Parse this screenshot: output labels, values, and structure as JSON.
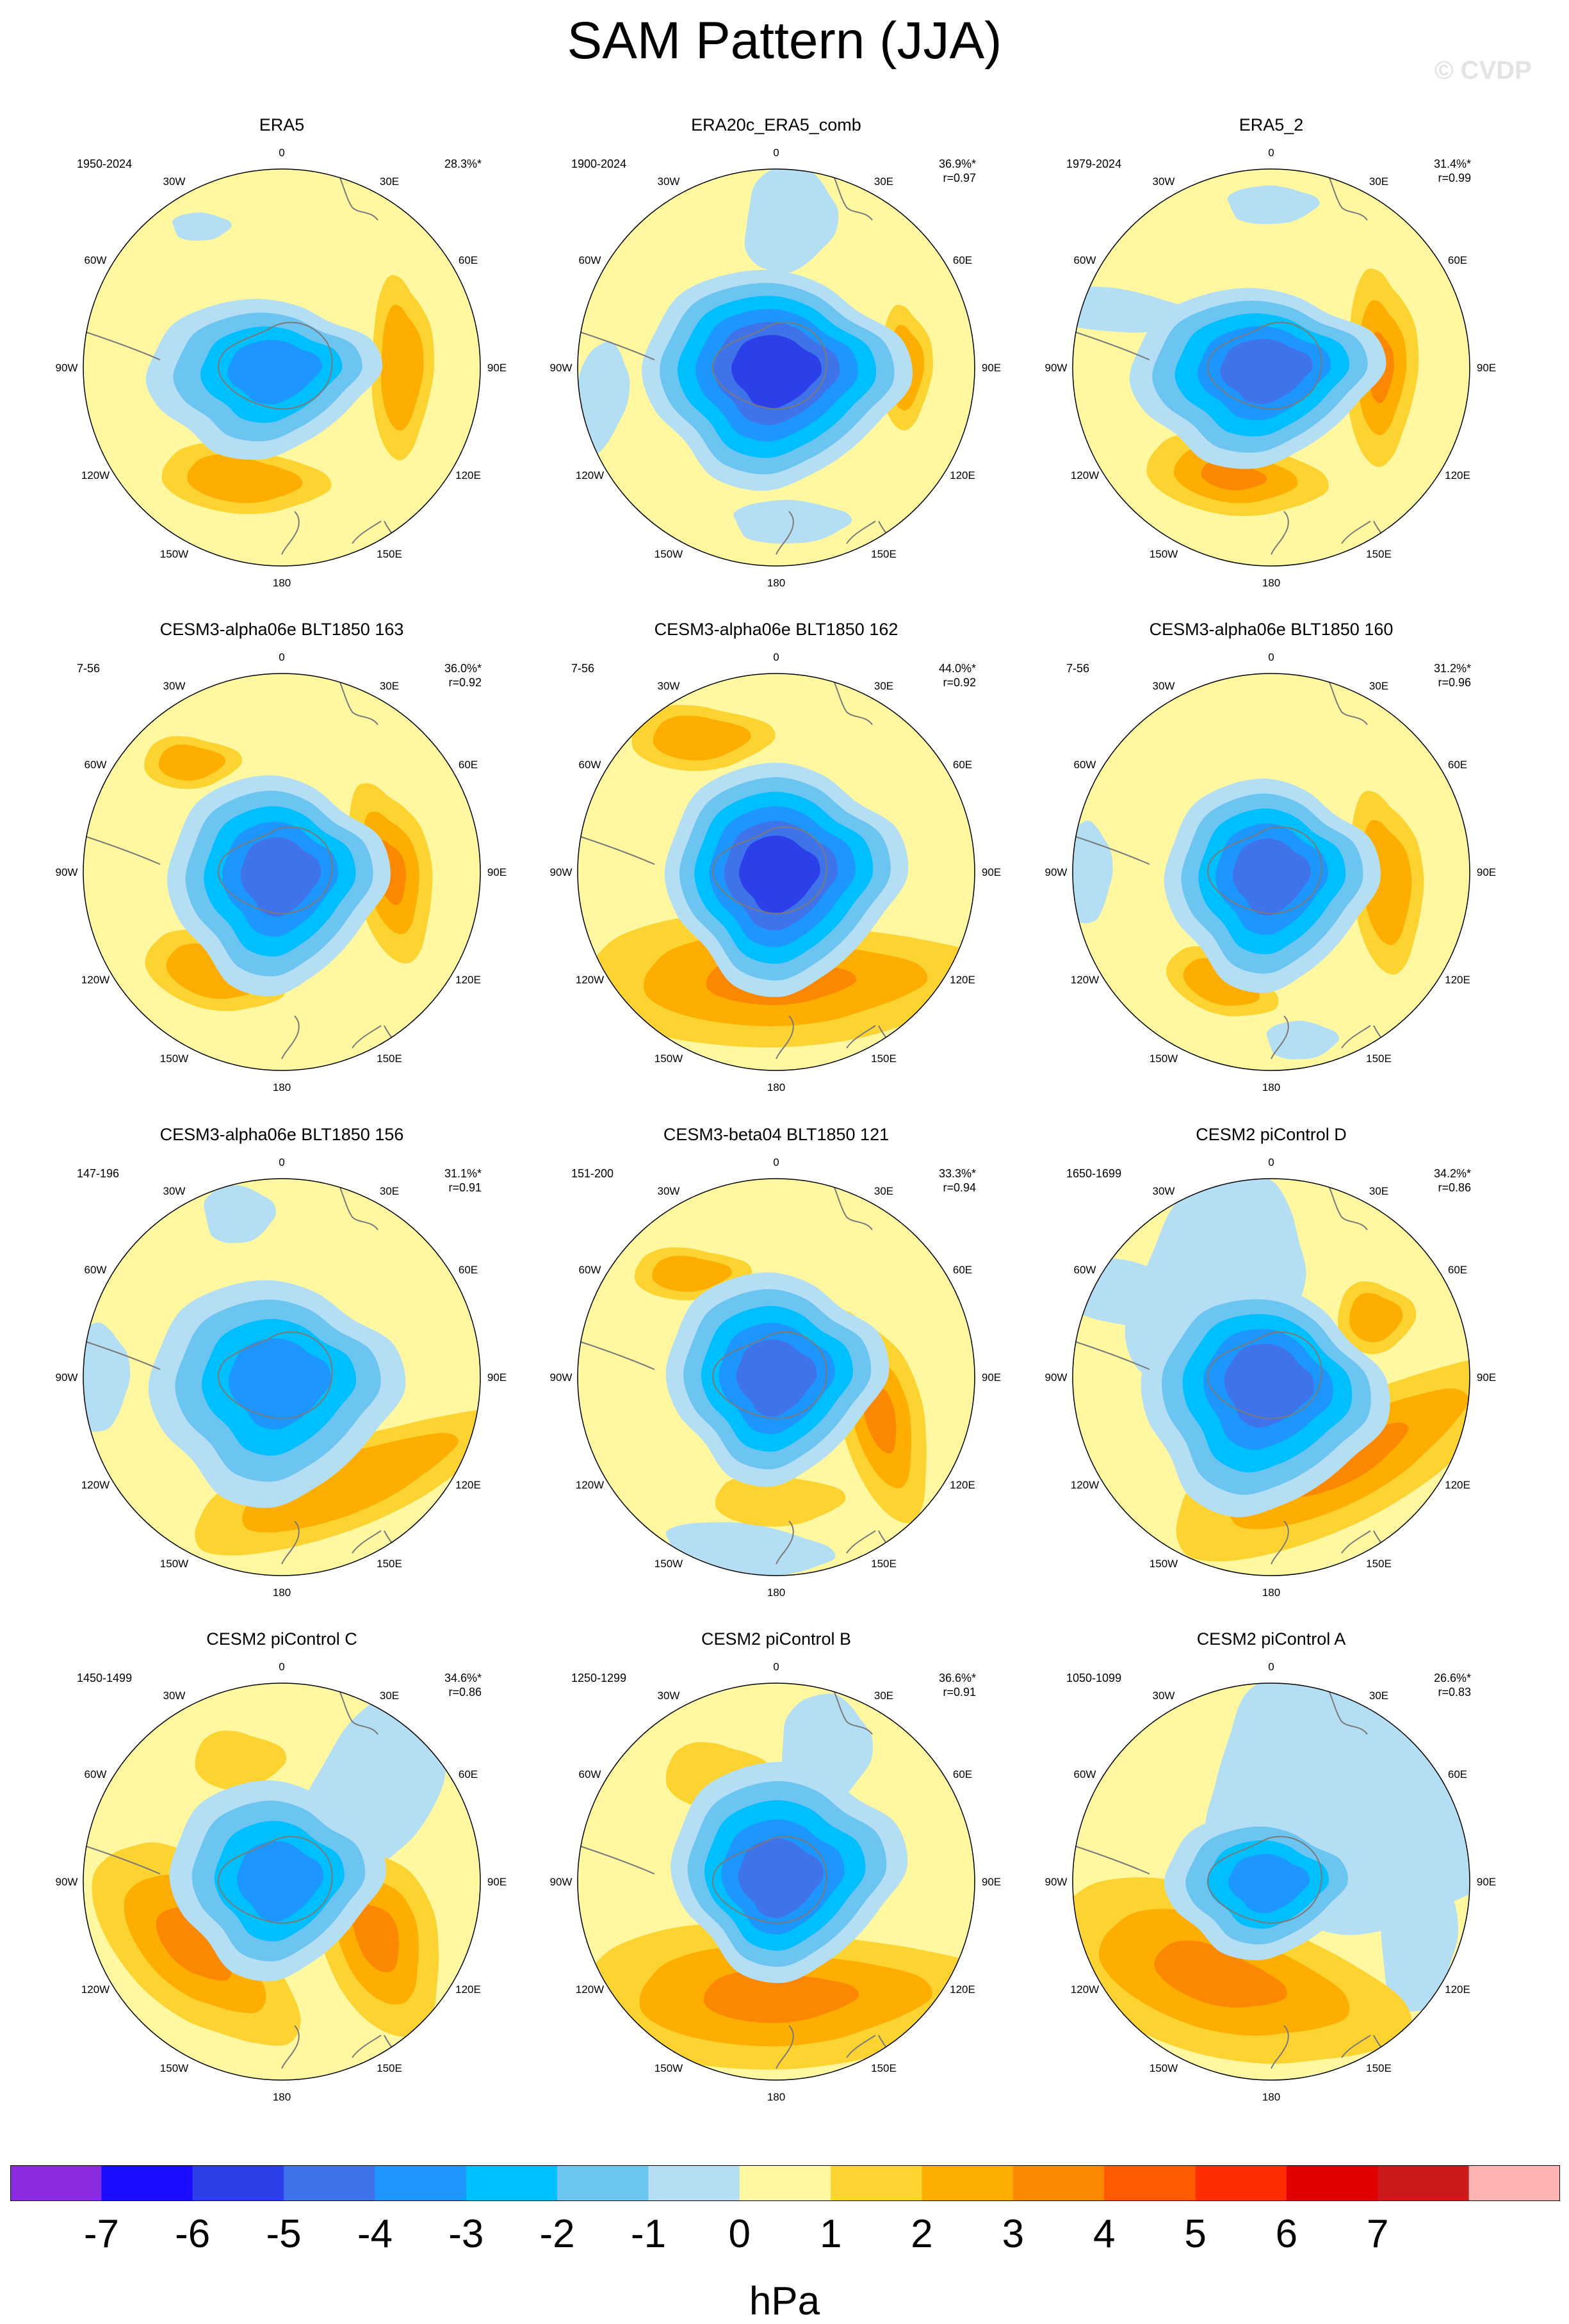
{
  "figure": {
    "title": "SAM Pattern (JJA)",
    "watermark": "© CVDP",
    "colors": {
      "land_outline": "#7a7a7a",
      "frame": "#000000",
      "background": "#ffffff"
    }
  },
  "colorbar": {
    "unit": "hPa",
    "tick_labels": [
      "-7",
      "-6",
      "-5",
      "-4",
      "-3",
      "-2",
      "-1",
      "0",
      "1",
      "2",
      "3",
      "4",
      "5",
      "6",
      "7"
    ],
    "colors": [
      "#8a2be2",
      "#1a0dff",
      "#2b40e8",
      "#3f73ea",
      "#1e96ff",
      "#00bfff",
      "#6cc4f0",
      "#b4def3",
      "#fff8a0",
      "#fdd332",
      "#fdae00",
      "#fc8700",
      "#ff5a00",
      "#ff2d00",
      "#e00000",
      "#cc1a1a",
      "#ffb3b3"
    ]
  },
  "chart_data": [
    {
      "type": "heatmap",
      "title": "ERA5",
      "years": "1950-2024",
      "percent": "28.3%*",
      "corr": "",
      "pattern": "era5",
      "projection": "south polar stereographic",
      "units": "hPa",
      "lon_labels": [
        "0",
        "30E",
        "60E",
        "90E",
        "120E",
        "150E",
        "180",
        "150W",
        "120W",
        "90W",
        "60W",
        "30W"
      ]
    },
    {
      "type": "heatmap",
      "title": "ERA20c_ERA5_comb",
      "years": "1900-2024",
      "percent": "36.9%*",
      "corr": "r=0.97",
      "pattern": "era20c",
      "projection": "south polar stereographic",
      "units": "hPa",
      "lon_labels": [
        "0",
        "30E",
        "60E",
        "90E",
        "120E",
        "150E",
        "180",
        "150W",
        "120W",
        "90W",
        "60W",
        "30W"
      ]
    },
    {
      "type": "heatmap",
      "title": "ERA5_2",
      "years": "1979-2024",
      "percent": "31.4%*",
      "corr": "r=0.99",
      "pattern": "era5_2",
      "projection": "south polar stereographic",
      "units": "hPa",
      "lon_labels": [
        "0",
        "30E",
        "60E",
        "90E",
        "120E",
        "150E",
        "180",
        "150W",
        "120W",
        "90W",
        "60W",
        "30W"
      ]
    },
    {
      "type": "heatmap",
      "title": "CESM3-alpha06e BLT1850 163",
      "years": "7-56",
      "percent": "36.0%*",
      "corr": "r=0.92",
      "pattern": "c163",
      "projection": "south polar stereographic",
      "units": "hPa",
      "lon_labels": [
        "0",
        "30E",
        "60E",
        "90E",
        "120E",
        "150E",
        "180",
        "150W",
        "120W",
        "90W",
        "60W",
        "30W"
      ]
    },
    {
      "type": "heatmap",
      "title": "CESM3-alpha06e BLT1850 162",
      "years": "7-56",
      "percent": "44.0%*",
      "corr": "r=0.92",
      "pattern": "c162",
      "projection": "south polar stereographic",
      "units": "hPa",
      "lon_labels": [
        "0",
        "30E",
        "60E",
        "90E",
        "120E",
        "150E",
        "180",
        "150W",
        "120W",
        "90W",
        "60W",
        "30W"
      ]
    },
    {
      "type": "heatmap",
      "title": "CESM3-alpha06e BLT1850 160",
      "years": "7-56",
      "percent": "31.2%*",
      "corr": "r=0.96",
      "pattern": "c160",
      "projection": "south polar stereographic",
      "units": "hPa",
      "lon_labels": [
        "0",
        "30E",
        "60E",
        "90E",
        "120E",
        "150E",
        "180",
        "150W",
        "120W",
        "90W",
        "60W",
        "30W"
      ]
    },
    {
      "type": "heatmap",
      "title": "CESM3-alpha06e BLT1850 156",
      "years": "147-196",
      "percent": "31.1%*",
      "corr": "r=0.91",
      "pattern": "c156",
      "projection": "south polar stereographic",
      "units": "hPa",
      "lon_labels": [
        "0",
        "30E",
        "60E",
        "90E",
        "120E",
        "150E",
        "180",
        "150W",
        "120W",
        "90W",
        "60W",
        "30W"
      ]
    },
    {
      "type": "heatmap",
      "title": "CESM3-beta04 BLT1850 121",
      "years": "151-200",
      "percent": "33.3%*",
      "corr": "r=0.94",
      "pattern": "b121",
      "projection": "south polar stereographic",
      "units": "hPa",
      "lon_labels": [
        "0",
        "30E",
        "60E",
        "90E",
        "120E",
        "150E",
        "180",
        "150W",
        "120W",
        "90W",
        "60W",
        "30W"
      ]
    },
    {
      "type": "heatmap",
      "title": "CESM2 piControl D",
      "years": "1650-1699",
      "percent": "34.2%*",
      "corr": "r=0.86",
      "pattern": "pd",
      "projection": "south polar stereographic",
      "units": "hPa",
      "lon_labels": [
        "0",
        "30E",
        "60E",
        "90E",
        "120E",
        "150E",
        "180",
        "150W",
        "120W",
        "90W",
        "60W",
        "30W"
      ]
    },
    {
      "type": "heatmap",
      "title": "CESM2 piControl C",
      "years": "1450-1499",
      "percent": "34.6%*",
      "corr": "r=0.86",
      "pattern": "pc",
      "projection": "south polar stereographic",
      "units": "hPa",
      "lon_labels": [
        "0",
        "30E",
        "60E",
        "90E",
        "120E",
        "150E",
        "180",
        "150W",
        "120W",
        "90W",
        "60W",
        "30W"
      ]
    },
    {
      "type": "heatmap",
      "title": "CESM2 piControl B",
      "years": "1250-1299",
      "percent": "36.6%*",
      "corr": "r=0.91",
      "pattern": "pb",
      "projection": "south polar stereographic",
      "units": "hPa",
      "lon_labels": [
        "0",
        "30E",
        "60E",
        "90E",
        "120E",
        "150E",
        "180",
        "150W",
        "120W",
        "90W",
        "60W",
        "30W"
      ]
    },
    {
      "type": "heatmap",
      "title": "CESM2 piControl A",
      "years": "1050-1099",
      "percent": "26.6%*",
      "corr": "r=0.83",
      "pattern": "pa",
      "projection": "south polar stereographic",
      "units": "hPa",
      "lon_labels": [
        "0",
        "30E",
        "60E",
        "90E",
        "120E",
        "150E",
        "180",
        "150W",
        "120W",
        "90W",
        "60W",
        "30W"
      ]
    }
  ]
}
